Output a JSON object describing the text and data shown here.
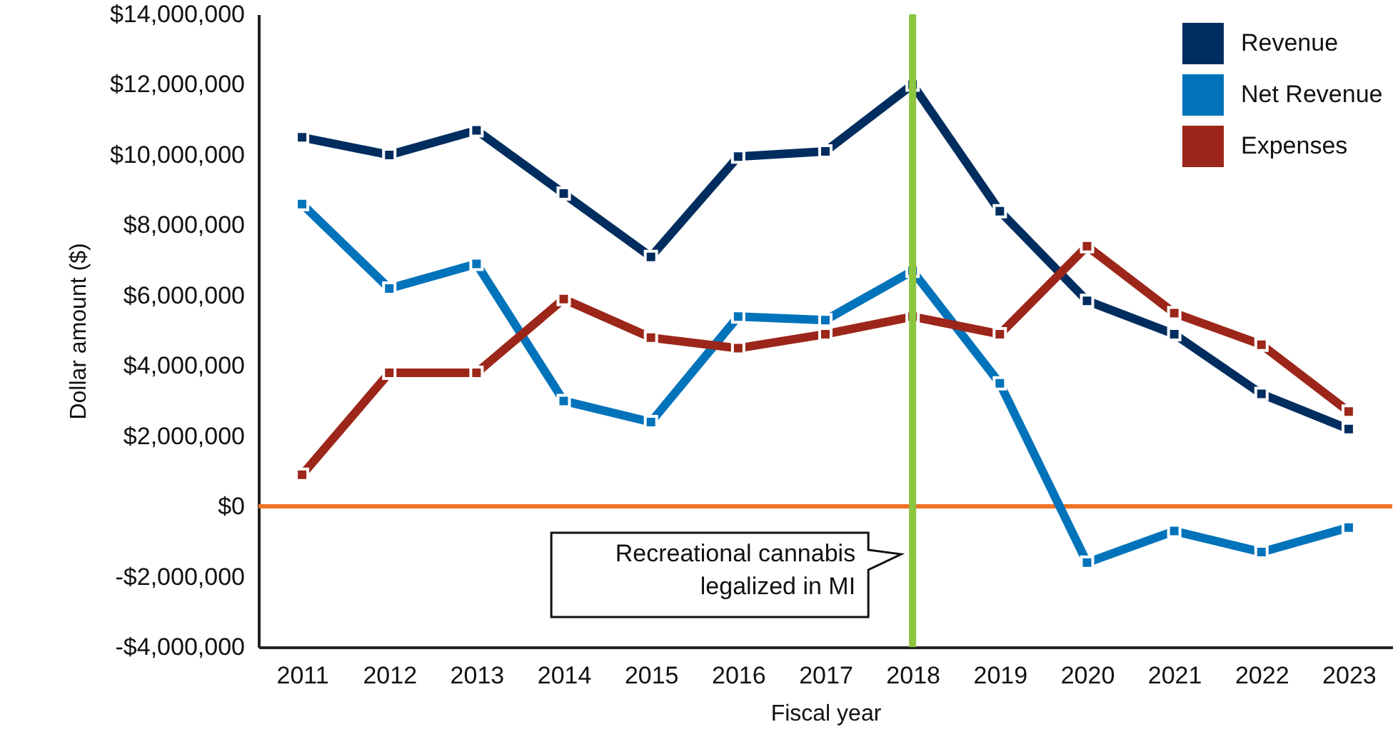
{
  "chart_data": {
    "type": "line",
    "xlabel": "Fiscal year",
    "ylabel": "Dollar amount ($)",
    "categories": [
      "2011",
      "2012",
      "2013",
      "2014",
      "2015",
      "2016",
      "2017",
      "2018",
      "2019",
      "2020",
      "2021",
      "2022",
      "2023"
    ],
    "series": [
      {
        "name": "Revenue",
        "color": "#002d5f",
        "values": [
          10500000,
          10000000,
          10700000,
          8900000,
          7100000,
          9950000,
          10100000,
          12000000,
          8400000,
          5850000,
          4900000,
          3200000,
          2200000
        ]
      },
      {
        "name": "Net Revenue",
        "color": "#0073ba",
        "values": [
          8600000,
          6200000,
          6900000,
          3000000,
          2400000,
          5400000,
          5300000,
          6700000,
          3500000,
          -1600000,
          -700000,
          -1300000,
          -600000
        ]
      },
      {
        "name": "Expenses",
        "color": "#9c2619",
        "values": [
          900000,
          3800000,
          3800000,
          5900000,
          4800000,
          4500000,
          4900000,
          5400000,
          4900000,
          7400000,
          5500000,
          4600000,
          2700000
        ]
      }
    ],
    "ylim": [
      -4000000,
      14000000
    ],
    "yticks": [
      {
        "value": -4000000,
        "label": "-$4,000,000"
      },
      {
        "value": -2000000,
        "label": "-$2,000,000"
      },
      {
        "value": 0,
        "label": "$0"
      },
      {
        "value": 2000000,
        "label": "$2,000,000"
      },
      {
        "value": 4000000,
        "label": "$4,000,000"
      },
      {
        "value": 6000000,
        "label": "$6,000,000"
      },
      {
        "value": 8000000,
        "label": "$8,000,000"
      },
      {
        "value": 10000000,
        "label": "$10,000,000"
      },
      {
        "value": 12000000,
        "label": "$12,000,000"
      },
      {
        "value": 14000000,
        "label": "$14,000,000"
      }
    ],
    "ref_lines": [
      {
        "axis": "y",
        "value": 0,
        "color": "#ee7325"
      },
      {
        "axis": "x",
        "value": "2018",
        "color": "#8cc63e",
        "label": "Recreational cannabis\nlegalized in MI"
      }
    ],
    "grid": false,
    "legend": "top right",
    "marker": "square",
    "line_style": "solid"
  }
}
